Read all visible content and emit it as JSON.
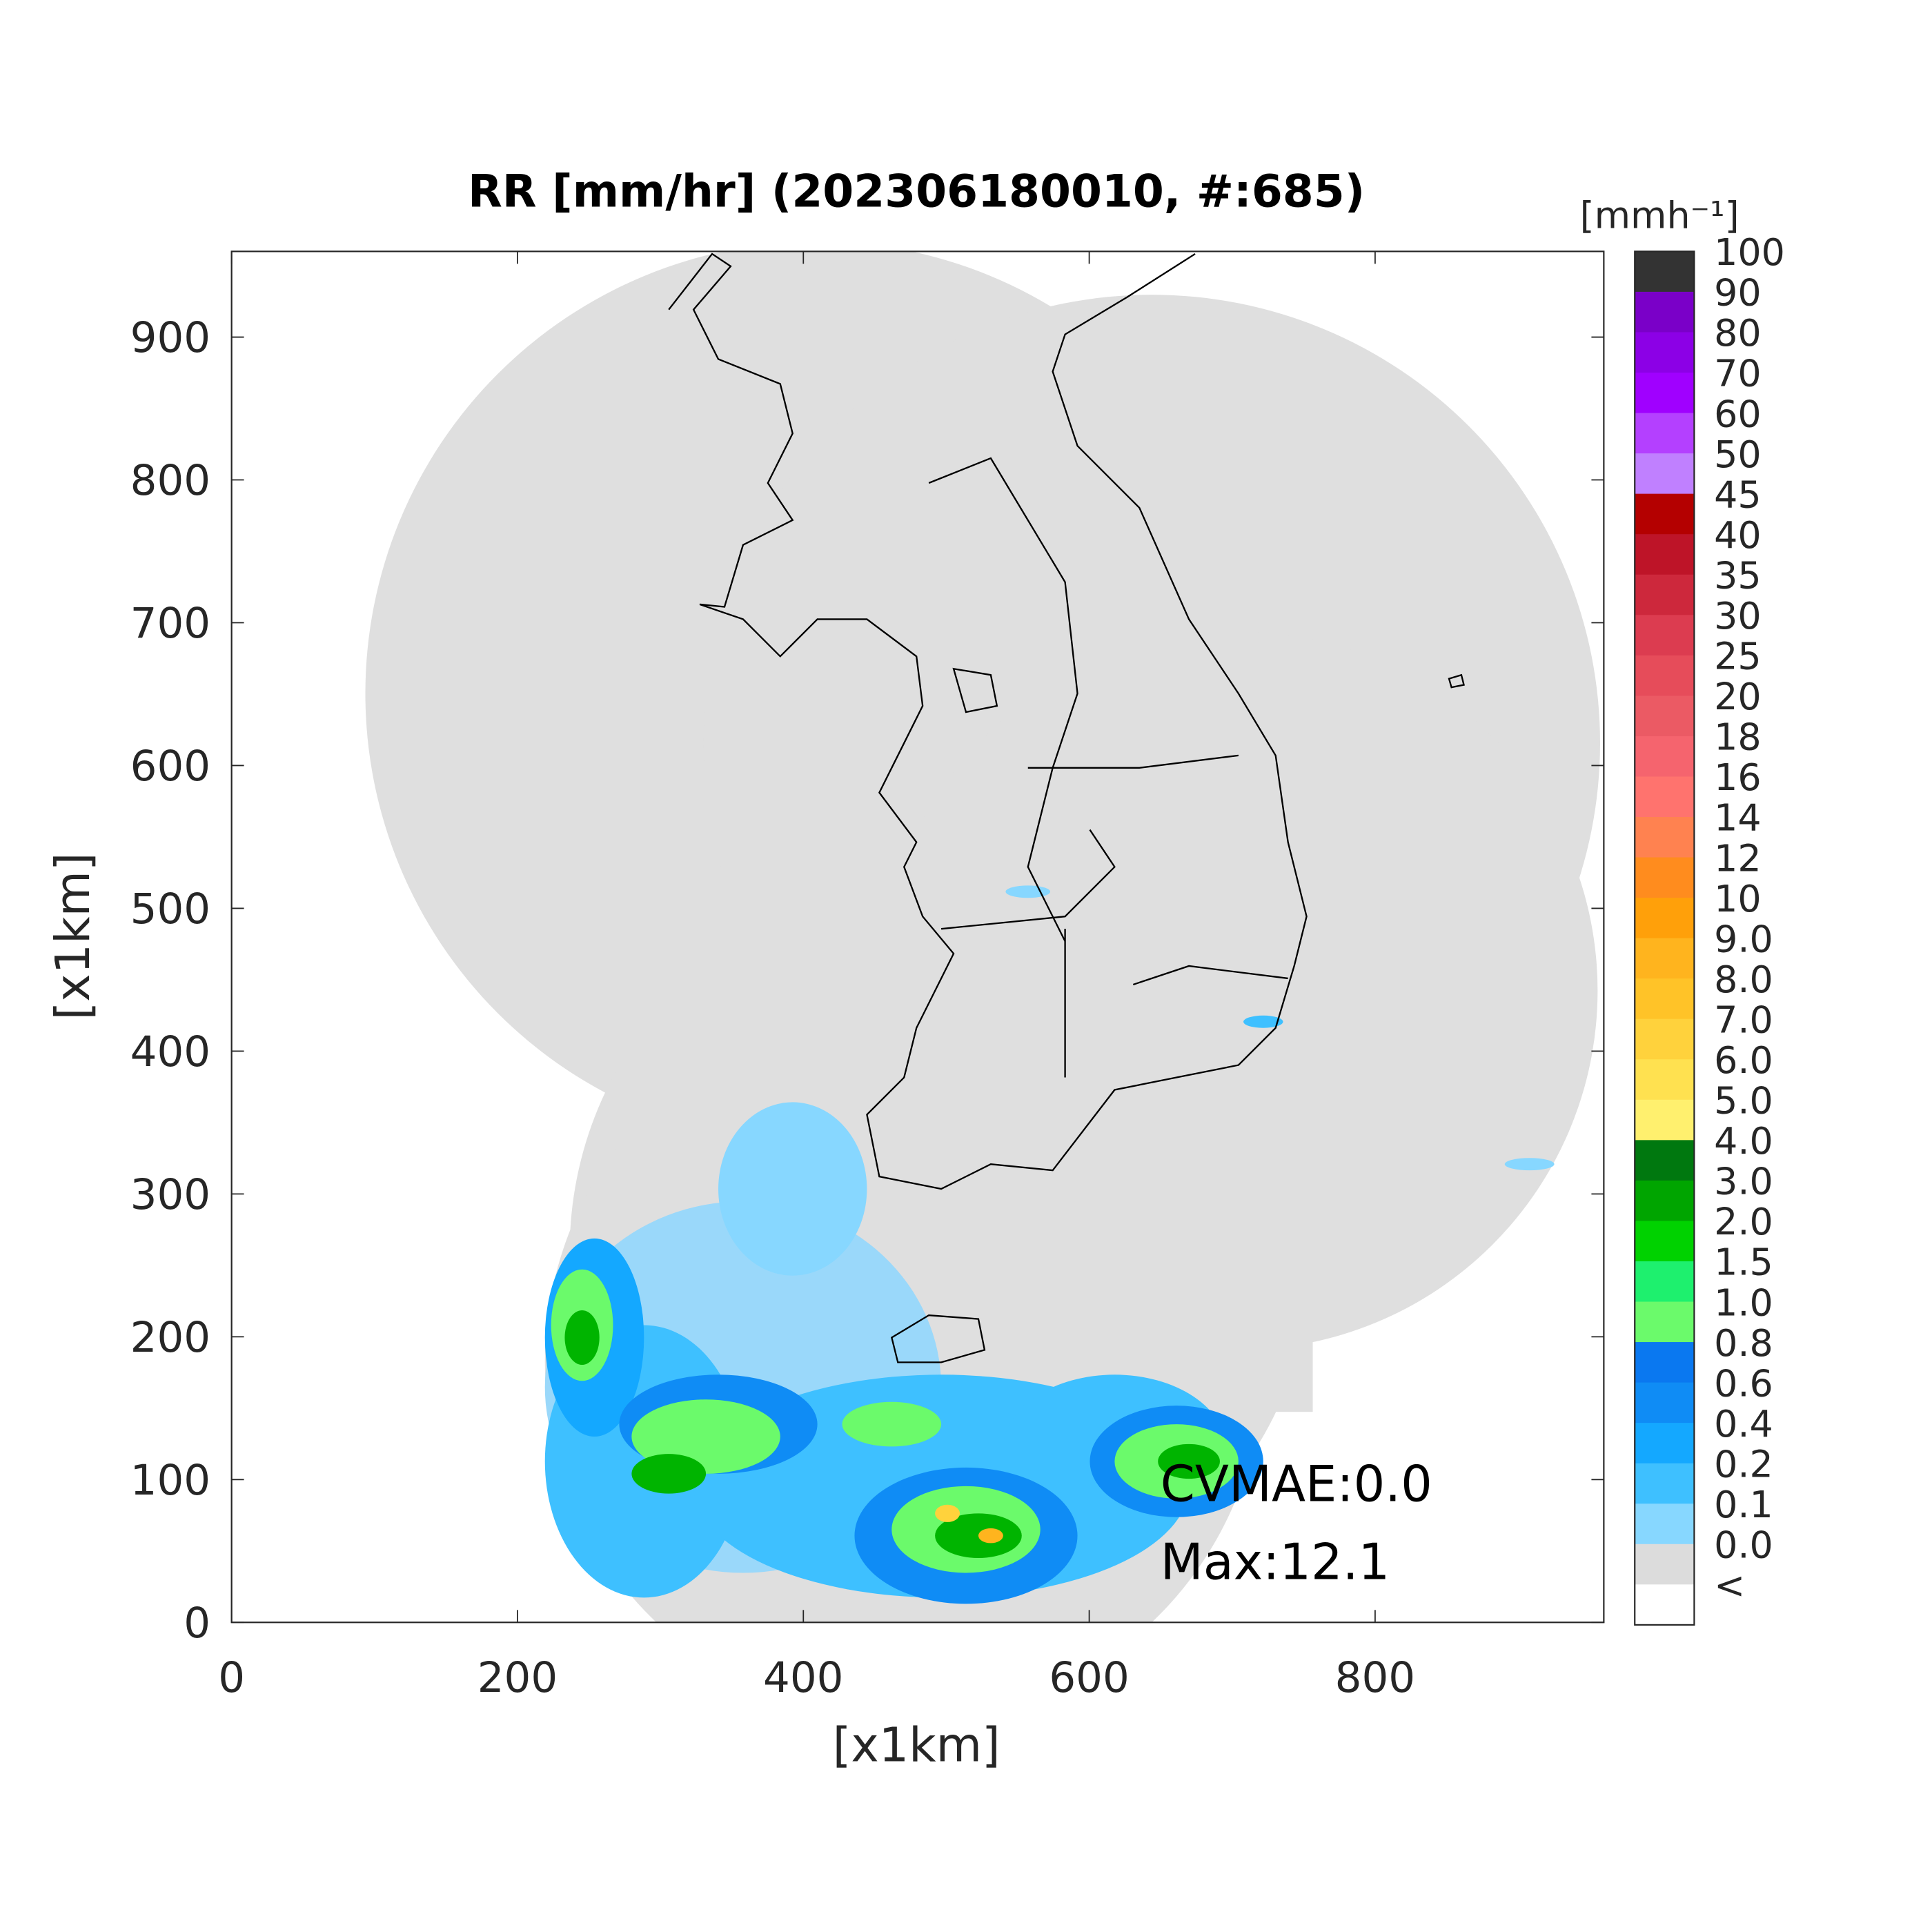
{
  "title": "RR [mm/hr] (202306180010, #:685)",
  "x_axis": {
    "label": "[x1km]",
    "lim": [
      0,
      960
    ],
    "ticks": [
      0,
      200,
      400,
      600,
      800
    ]
  },
  "y_axis": {
    "label": "[x1km]",
    "lim": [
      0,
      960
    ],
    "ticks": [
      0,
      100,
      200,
      300,
      400,
      500,
      600,
      700,
      800,
      900
    ]
  },
  "colorbar": {
    "unit": "[mmh⁻¹]",
    "labels": [
      "100",
      "90",
      "80",
      "70",
      "60",
      "50",
      "45",
      "40",
      "35",
      "30",
      "25",
      "20",
      "18",
      "16",
      "14",
      "12",
      "10",
      "9.0",
      "8.0",
      "7.0",
      "6.0",
      "5.0",
      "4.0",
      "3.0",
      "2.0",
      "1.5",
      "1.0",
      "0.8",
      "0.6",
      "0.4",
      "0.2",
      "0.1",
      "0.0",
      "<"
    ],
    "colors": [
      "#333333",
      "#7a00c8",
      "#8c00e6",
      "#a000ff",
      "#b440ff",
      "#c080ff",
      "#b40000",
      "#be1428",
      "#cd283c",
      "#dc3c50",
      "#e64c5a",
      "#eb5a64",
      "#f5646e",
      "#ff736e",
      "#ff8250",
      "#ff8c1e",
      "#ffa00a",
      "#ffb41e",
      "#ffc328",
      "#ffd23c",
      "#ffe150",
      "#fff06e",
      "#00780f",
      "#00a500",
      "#00d200",
      "#1ef06e",
      "#6bfa6b",
      "#0a78f0",
      "#0f8cf5",
      "#14a8ff",
      "#3ec0ff",
      "#87d7ff",
      "#dcdcdc",
      "#ffffff"
    ]
  },
  "annotations": [
    "CVMAE:0.0",
    "Max:12.1"
  ]
}
